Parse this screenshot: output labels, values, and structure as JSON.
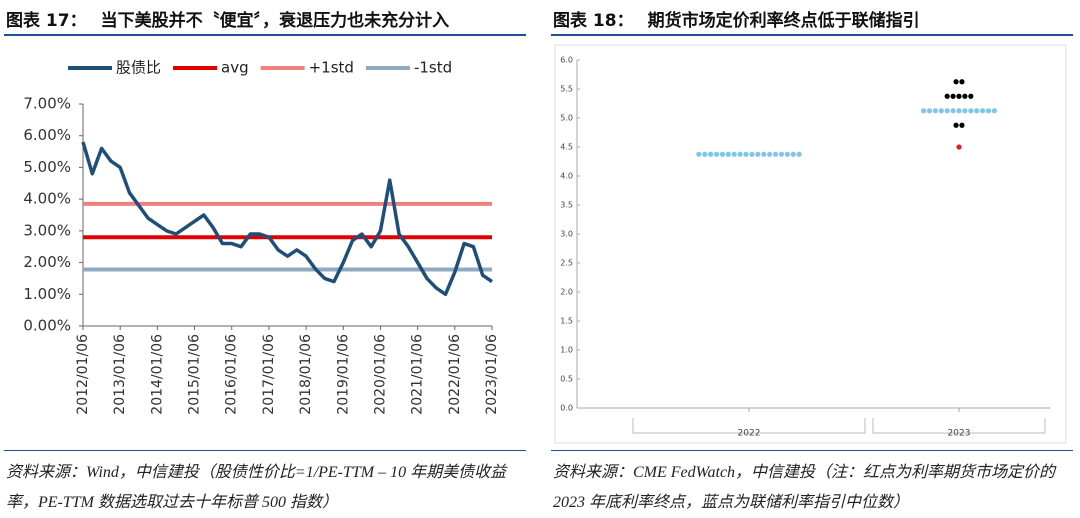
{
  "figures": [
    {
      "label": "图表 17：",
      "title": "当下美股并不〝便宜〞，衰退压力也未充分计入",
      "source": "资料来源：Wind，中信建投（股债性价比=1/PE-TTM – 10 年期美债收益率，PE-TTM 数据选取过去十年标普 500 指数）"
    },
    {
      "label": "图表 18：",
      "title": "期货市场定价利率终点低于联储指引",
      "source": "资料来源：CME FedWatch，中信建投（注：红点为利率期货市场定价的 2023 年底利率终点，蓝点为联储利率指引中位数）"
    }
  ],
  "chart_data": [
    {
      "type": "line",
      "categories": [
        "2012/01/06",
        null,
        null,
        null,
        "2013/01/06",
        null,
        null,
        null,
        "2014/01/06",
        null,
        null,
        null,
        "2015/01/06",
        null,
        null,
        null,
        "2016/01/06",
        null,
        null,
        null,
        "2017/01/06",
        null,
        null,
        null,
        "2018/01/06",
        null,
        null,
        null,
        "2019/01/06",
        null,
        null,
        null,
        "2020/01/06",
        null,
        null,
        null,
        "2021/01/06",
        null,
        null,
        null,
        "2022/01/06",
        null,
        null,
        null,
        "2023/01/06"
      ],
      "series": [
        {
          "name": "股债比",
          "color": "#1f4e79",
          "values": [
            5.8,
            4.8,
            5.6,
            5.2,
            5.0,
            4.2,
            3.8,
            3.4,
            3.2,
            3.0,
            2.9,
            3.1,
            3.3,
            3.5,
            3.1,
            2.6,
            2.6,
            2.5,
            2.9,
            2.9,
            2.8,
            2.4,
            2.2,
            2.4,
            2.2,
            1.8,
            1.5,
            1.4,
            2.0,
            2.7,
            2.9,
            2.5,
            3.0,
            4.6,
            2.9,
            2.5,
            2.0,
            1.5,
            1.2,
            1.0,
            1.7,
            2.6,
            2.5,
            1.6,
            1.4
          ]
        }
      ],
      "lines": [
        {
          "name": "avg",
          "color": "#e00000",
          "value": 2.8
        },
        {
          "name": "+1std",
          "color": "#f08080",
          "value": 3.85
        },
        {
          "name": "-1std",
          "color": "#8fa9c0",
          "value": 1.78
        }
      ],
      "ylim": [
        0,
        7
      ],
      "yticks": [
        {
          "value": 0,
          "label": "0.00%"
        },
        {
          "value": 1,
          "label": "1.00%"
        },
        {
          "value": 2,
          "label": "2.00%"
        },
        {
          "value": 3,
          "label": "3.00%"
        },
        {
          "value": 4,
          "label": "4.00%"
        },
        {
          "value": 5,
          "label": "5.00%"
        },
        {
          "value": 6,
          "label": "6.00%"
        },
        {
          "value": 7,
          "label": "7.00%"
        }
      ]
    },
    {
      "type": "dot",
      "categories": [
        "2022",
        "2023"
      ],
      "series": [
        {
          "x": "2022",
          "value": 4.375,
          "count": 18,
          "color": "#7ec8e3"
        },
        {
          "x": "2023",
          "value": 5.625,
          "count": 2,
          "color": "#000000"
        },
        {
          "x": "2023",
          "value": 5.375,
          "count": 5,
          "color": "#000000"
        },
        {
          "x": "2023",
          "value": 5.125,
          "count": 13,
          "color": "#7ec8e3"
        },
        {
          "x": "2023",
          "value": 4.875,
          "count": 2,
          "color": "#000000"
        },
        {
          "x": "2023",
          "value": 4.5,
          "count": 1,
          "color": "#e02020"
        }
      ],
      "ylim": [
        0,
        6
      ],
      "yticks": [
        {
          "value": 0,
          "label": "0.0"
        },
        {
          "value": 0.5,
          "label": "0.5"
        },
        {
          "value": 1,
          "label": "1.0"
        },
        {
          "value": 1.5,
          "label": "1.5"
        },
        {
          "value": 2,
          "label": "2.0"
        },
        {
          "value": 2.5,
          "label": "2.5"
        },
        {
          "value": 3,
          "label": "3.0"
        },
        {
          "value": 3.5,
          "label": "3.5"
        },
        {
          "value": 4,
          "label": "4.0"
        },
        {
          "value": 4.5,
          "label": "4.5"
        },
        {
          "value": 5,
          "label": "5.0"
        },
        {
          "value": 5.5,
          "label": "5.5"
        },
        {
          "value": 6,
          "label": "6.0"
        }
      ]
    }
  ]
}
